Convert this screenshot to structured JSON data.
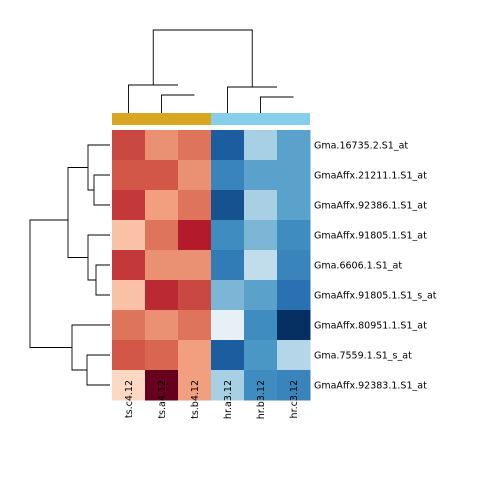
{
  "chart_data": {
    "type": "heatmap",
    "title": "",
    "columns": [
      "ts.c4.12",
      "ts.a4.12",
      "ts.b4.12",
      "hr.a3.12",
      "hr.b3.12",
      "hr.c3.12"
    ],
    "rows": [
      "Gma.16735.2.S1_at",
      "GmaAffx.21211.1.S1_at",
      "GmaAffx.92386.1.S1_at",
      "GmaAffx.91805.1.S1_at",
      "Gma.6606.1.S1_at",
      "GmaAffx.91805.1.S1_s_at",
      "GmaAffx.80951.1.S1_at",
      "Gma.7559.1.S1_s_at",
      "GmaAffx.92383.1.S1_at"
    ],
    "values": [
      [
        1.6,
        1.1,
        1.3,
        -2.0,
        -0.8,
        -1.3
      ],
      [
        1.5,
        1.5,
        1.1,
        -1.6,
        -1.3,
        -1.3
      ],
      [
        1.7,
        1.0,
        1.3,
        -2.1,
        -0.8,
        -1.3
      ],
      [
        0.7,
        1.3,
        1.9,
        -1.5,
        -1.1,
        -1.5
      ],
      [
        1.7,
        1.1,
        1.1,
        -1.7,
        -0.6,
        -1.6
      ],
      [
        0.7,
        1.8,
        1.6,
        -1.1,
        -1.3,
        -1.8
      ],
      [
        1.3,
        1.1,
        1.3,
        -0.2,
        -1.5,
        -2.4
      ],
      [
        1.5,
        1.4,
        1.0,
        -2.0,
        -1.4,
        -0.7
      ],
      [
        0.5,
        2.4,
        1.0,
        -0.8,
        -1.5,
        -1.6
      ]
    ],
    "value_range": [
      -2.4,
      2.4
    ],
    "colormap": [
      "#053061",
      "#2166ac",
      "#4393c3",
      "#92c5de",
      "#d1e5f0",
      "#f7f7f7",
      "#fddbc7",
      "#f4a582",
      "#d6604d",
      "#b2182b",
      "#67001f"
    ],
    "column_groups": [
      {
        "columns": [
          "ts.c4.12",
          "ts.a4.12",
          "ts.b4.12"
        ],
        "color": "#daa520"
      },
      {
        "columns": [
          "hr.a3.12",
          "hr.b3.12",
          "hr.c3.12"
        ],
        "color": "#87ceeb"
      }
    ],
    "column_dendrogram": true,
    "row_dendrogram": true,
    "legend": "none",
    "grid": false
  }
}
